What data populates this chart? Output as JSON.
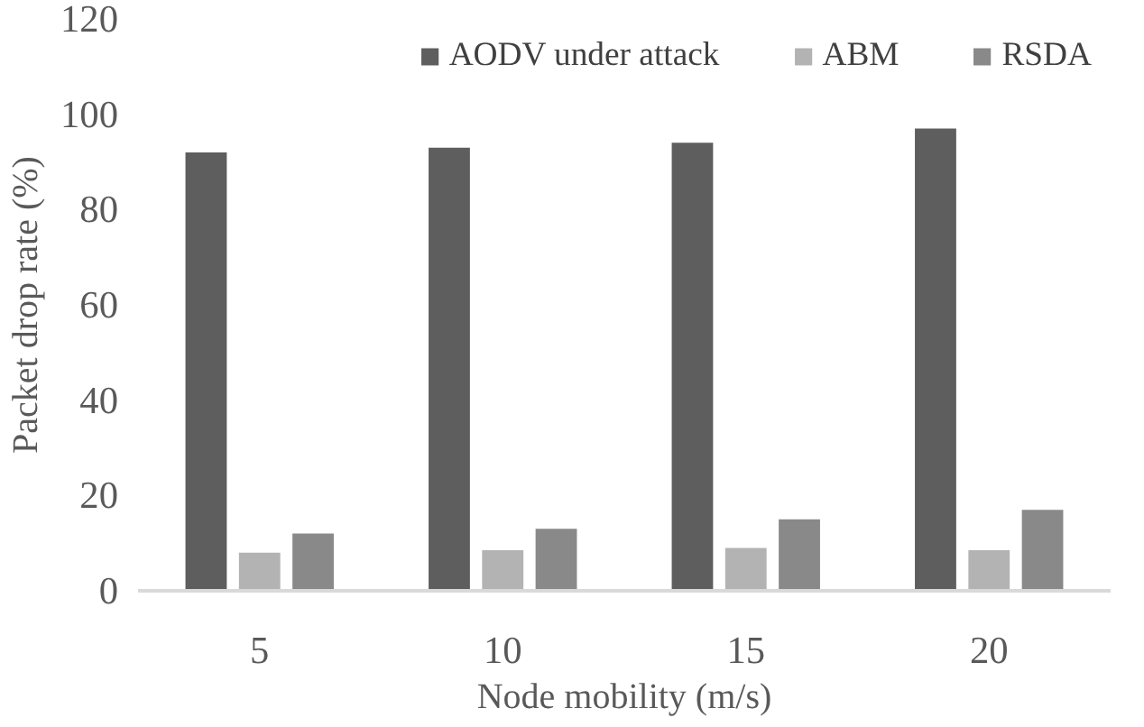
{
  "chart_data": {
    "type": "bar",
    "xlabel": "Node mobility (m/s)",
    "ylabel": "Packet drop rate (%)",
    "categories": [
      "5",
      "10",
      "15",
      "20"
    ],
    "series": [
      {
        "name": "AODV under attack",
        "color": "#5e5e5e",
        "values": [
          92,
          93,
          94,
          97
        ]
      },
      {
        "name": "ABM",
        "color": "#b3b3b3",
        "values": [
          8,
          8.5,
          9,
          8.5
        ]
      },
      {
        "name": "RSDA",
        "color": "#898989",
        "values": [
          12,
          13,
          15,
          17
        ]
      }
    ],
    "ylim": [
      0,
      120
    ],
    "yticks": [
      0,
      20,
      40,
      60,
      80,
      100,
      120
    ],
    "grid": false,
    "legend": "top"
  }
}
